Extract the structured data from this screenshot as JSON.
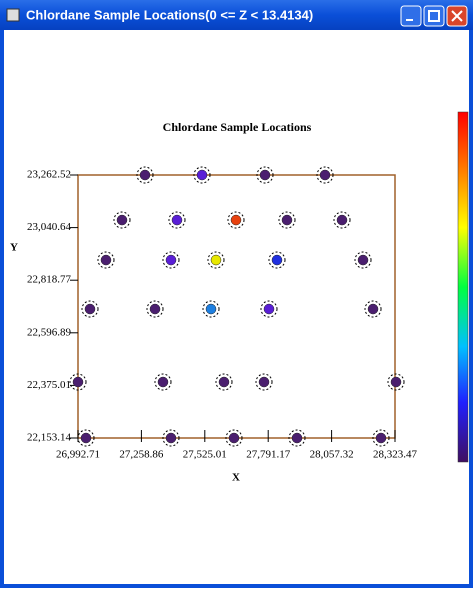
{
  "window": {
    "title": "Chlordane Sample Locations(0 <= Z < 13.4134)"
  },
  "chart_data": {
    "type": "scatter",
    "title": "Chlordane Sample Locations",
    "x_label": "X",
    "y_label": "Y",
    "x": [
      27274.0,
      27513.3,
      27777.8,
      28029.7,
      27177.4,
      27408.3,
      27656.0,
      27870.1,
      28101.0,
      27110.2,
      27383.1,
      27572.0,
      27828.1,
      28189.2,
      27043.1,
      27316.0,
      27551.1,
      27794.5,
      28231.2,
      26992.7,
      27349.5,
      27605.6,
      27773.6,
      28327.7,
      27026.3,
      27383.1,
      27647.6,
      27912.1,
      28264.7
    ],
    "y": [
      23262.5,
      23262.5,
      23262.5,
      23262.5,
      23072.5,
      23072.5,
      23072.5,
      23072.5,
      23072.5,
      22903.8,
      22903.8,
      22903.8,
      22903.8,
      22903.8,
      22697.2,
      22697.2,
      22697.2,
      22697.2,
      22697.2,
      22389.3,
      22389.3,
      22389.3,
      22389.3,
      22389.3,
      22153.1,
      22153.1,
      22153.1,
      22153.1,
      22153.1
    ],
    "colors": [
      "#4b1f6f",
      "#5a1fd6",
      "#4b1f6f",
      "#4b1f6f",
      "#4b1f6f",
      "#5a1fd6",
      "#e8420f",
      "#4b1f6f",
      "#4b1f6f",
      "#4b1f6f",
      "#5a1fd6",
      "#e8e800",
      "#2030e0",
      "#4b1f6f",
      "#4b1f6f",
      "#4b1f6f",
      "#1e7fe0",
      "#5a1fd6",
      "#4b1f6f",
      "#4b1f6f",
      "#4b1f6f",
      "#4b1f6f",
      "#4b1f6f",
      "#4b1f6f",
      "#4b1f6f",
      "#4b1f6f",
      "#4b1f6f",
      "#4b1f6f",
      "#4b1f6f"
    ],
    "xlim": [
      26992.71,
      28323.47
    ],
    "ylim": [
      22153.14,
      23262.52
    ],
    "xticks": [
      {
        "value": 26992.71,
        "label": "26,992.71"
      },
      {
        "value": 27258.86,
        "label": "27,258.86"
      },
      {
        "value": 27525.01,
        "label": "27,525.01"
      },
      {
        "value": 27791.17,
        "label": "27,791.17"
      },
      {
        "value": 28057.32,
        "label": "28,057.32"
      },
      {
        "value": 28323.47,
        "label": "28,323.47"
      }
    ],
    "yticks": [
      {
        "value": 22153.14,
        "label": "22,153.14"
      },
      {
        "value": 22375.01,
        "label": "22,375.01"
      },
      {
        "value": 22596.89,
        "label": "22,596.89"
      },
      {
        "value": 22818.77,
        "label": "22,818.77"
      },
      {
        "value": 23040.64,
        "label": "23,040.64"
      },
      {
        "value": 23262.52,
        "label": "23,262.52"
      }
    ]
  }
}
